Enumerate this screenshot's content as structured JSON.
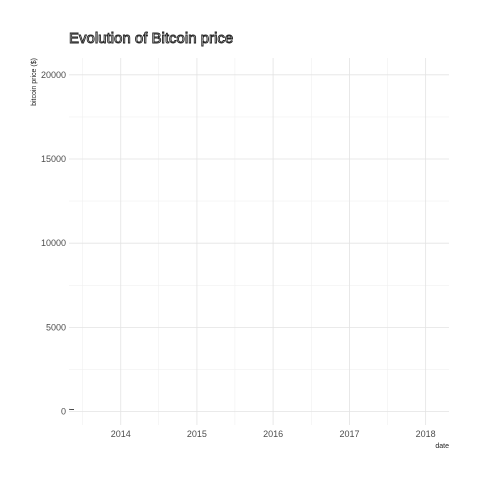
{
  "chart_data": {
    "type": "line",
    "title": "Evolution of Bitcoin price",
    "xlabel": "date",
    "ylabel": "bitcoin price ($)",
    "x_ticks": [
      "2014",
      "2015",
      "2016",
      "2017",
      "2018"
    ],
    "y_ticks": [
      0,
      5000,
      10000,
      15000,
      20000
    ],
    "xlim": [
      "2013-04-28",
      "2018-04-23"
    ],
    "ylim": [
      -800,
      21000
    ],
    "grid": true,
    "legend": "none",
    "series": [
      {
        "x": [
          "2013-04-28",
          "2013-05-10",
          "2013-05-22"
        ],
        "values": [
          135,
          118,
          125
        ]
      }
    ],
    "colors": {
      "line": "#333333",
      "grid_major": "#e3e3e3",
      "grid_minor": "#f0f0f0",
      "text": "#4d4d4d"
    }
  }
}
